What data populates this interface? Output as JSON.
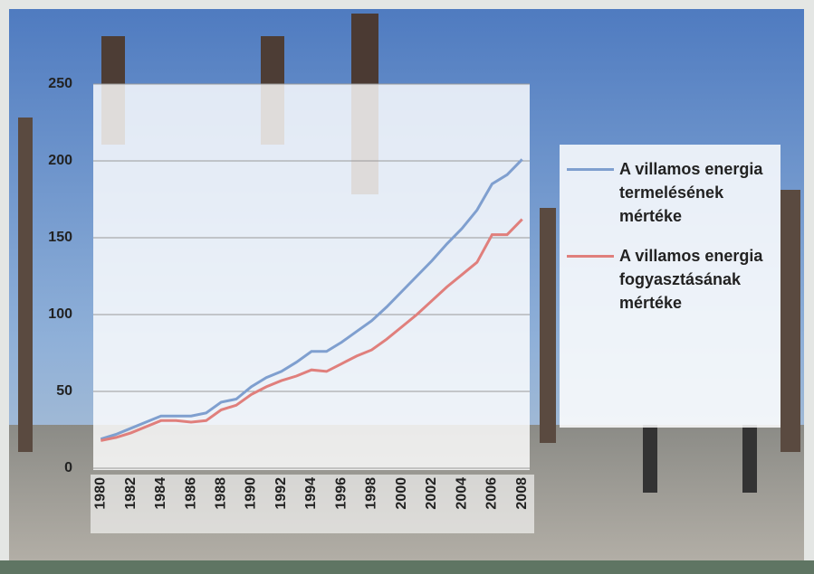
{
  "chart_data": {
    "type": "line",
    "categories": [
      "1980",
      null,
      "1982",
      null,
      "1984",
      null,
      "1986",
      null,
      "1988",
      null,
      "1990",
      null,
      "1992",
      null,
      "1994",
      null,
      "1996",
      null,
      "1998",
      null,
      "2000",
      null,
      "2002",
      null,
      "2004",
      null,
      "2006",
      null,
      "2008"
    ],
    "series": [
      {
        "name": "A villamos energia termelésének mértéke",
        "color": "#7f9fcf",
        "values": [
          19,
          22,
          26,
          30,
          34,
          34,
          34,
          36,
          43,
          45,
          53,
          59,
          63,
          69,
          76,
          76,
          82,
          89,
          96,
          105,
          115,
          125,
          135,
          146,
          156,
          168,
          185,
          191,
          201
        ]
      },
      {
        "name": "A villamos energia fogyasztásának mértéke",
        "color": "#e07f7c",
        "values": [
          18,
          20,
          23,
          27,
          31,
          31,
          30,
          31,
          38,
          41,
          48,
          53,
          57,
          60,
          64,
          63,
          68,
          73,
          77,
          84,
          92,
          100,
          109,
          118,
          126,
          134,
          152,
          152,
          162
        ]
      }
    ],
    "ylim": [
      0,
      250
    ],
    "yticks": [
      0,
      50,
      100,
      150,
      200,
      250
    ],
    "grid": true,
    "legend": "right"
  }
}
